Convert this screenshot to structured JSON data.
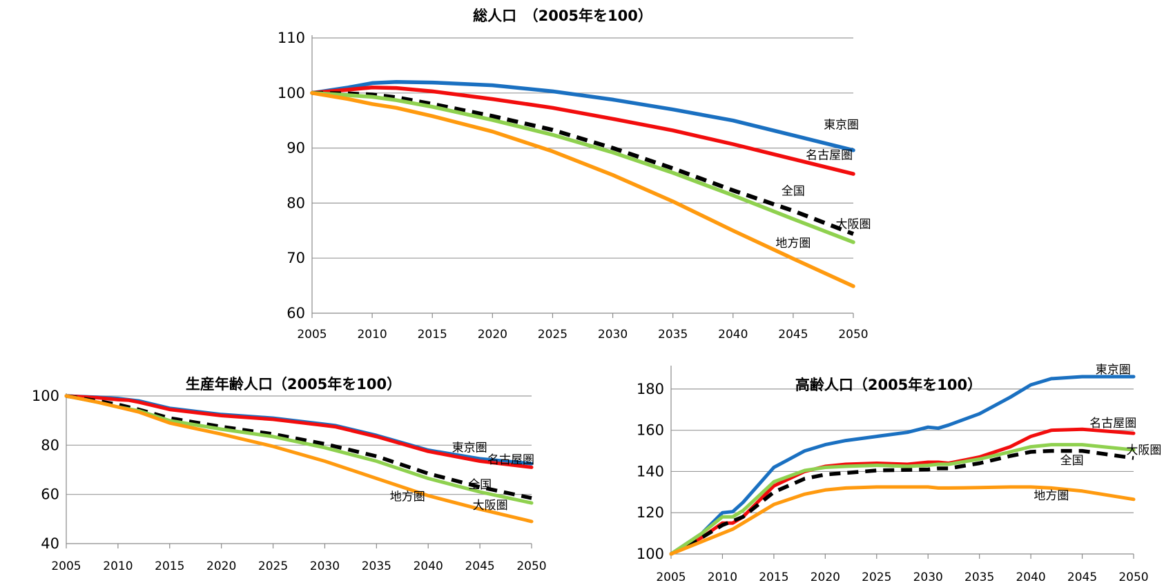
{
  "colors": {
    "東京圏": "#1a70c1",
    "名古屋圏": "#f20d0d",
    "全国": "#000000",
    "大阪圏": "#8fd14f",
    "地方圏": "#ff9a0f"
  },
  "chart_data": [
    {
      "type": "line",
      "title": "総人口　（2005年を100）",
      "xlabel": "",
      "ylabel": "",
      "x_ticks": [
        "2005",
        "2010",
        "2015",
        "2020",
        "2025",
        "2030",
        "2035",
        "2040",
        "2045",
        "2050"
      ],
      "xlim": [
        2005,
        2050
      ],
      "ylim": [
        60,
        110
      ],
      "y_ticks": [
        60,
        70,
        80,
        90,
        100,
        110
      ],
      "grid": true,
      "series": [
        {
          "name": "東京圏",
          "dashed": false,
          "x": [
            2005,
            2008,
            2010,
            2012,
            2015,
            2020,
            2025,
            2030,
            2035,
            2040,
            2045,
            2050
          ],
          "values": [
            100,
            101.0,
            101.8,
            102.0,
            101.9,
            101.4,
            100.3,
            98.8,
            97.0,
            95.0,
            92.3,
            89.6
          ]
        },
        {
          "name": "名古屋圏",
          "dashed": false,
          "x": [
            2005,
            2008,
            2010,
            2012,
            2015,
            2020,
            2025,
            2030,
            2035,
            2040,
            2045,
            2050
          ],
          "values": [
            100,
            100.6,
            101.0,
            100.9,
            100.3,
            98.9,
            97.3,
            95.3,
            93.2,
            90.7,
            88.0,
            85.3
          ]
        },
        {
          "name": "全国",
          "dashed": true,
          "x": [
            2005,
            2008,
            2010,
            2012,
            2015,
            2020,
            2025,
            2030,
            2035,
            2040,
            2045,
            2050
          ],
          "values": [
            100,
            99.9,
            99.7,
            99.2,
            98.0,
            95.8,
            93.3,
            90.0,
            86.3,
            82.3,
            78.6,
            74.4
          ]
        },
        {
          "name": "大阪圏",
          "dashed": false,
          "x": [
            2005,
            2008,
            2010,
            2012,
            2015,
            2020,
            2025,
            2030,
            2035,
            2040,
            2045,
            2050
          ],
          "values": [
            100,
            99.6,
            99.3,
            98.7,
            97.5,
            95.1,
            92.4,
            89.2,
            85.5,
            81.4,
            77.1,
            72.9
          ]
        },
        {
          "name": "地方圏",
          "dashed": false,
          "x": [
            2005,
            2008,
            2010,
            2012,
            2015,
            2020,
            2025,
            2030,
            2035,
            2040,
            2045,
            2050
          ],
          "values": [
            100,
            98.9,
            98.0,
            97.3,
            95.8,
            93.0,
            89.4,
            85.1,
            80.3,
            75.0,
            69.9,
            64.9
          ]
        }
      ],
      "labels": [
        {
          "text": "東京圏",
          "x": 2049,
          "y": 93.5
        },
        {
          "text": "名古屋圏",
          "x": 2048,
          "y": 88.0
        },
        {
          "text": "全国",
          "x": 2045,
          "y": 81.5
        },
        {
          "text": "大阪圏",
          "x": 2050,
          "y": 75.5
        },
        {
          "text": "地方圏",
          "x": 2045,
          "y": 72.0
        }
      ]
    },
    {
      "type": "line",
      "title": "生産年齢人口（2005年を100）",
      "xlabel": "",
      "ylabel": "",
      "x_ticks": [
        "2005",
        "2010",
        "2015",
        "2020",
        "2025",
        "2030",
        "2035",
        "2040",
        "2045",
        "2050"
      ],
      "xlim": [
        2005,
        2050
      ],
      "ylim": [
        40,
        100
      ],
      "y_ticks": [
        40,
        60,
        80,
        100
      ],
      "grid": true,
      "series": [
        {
          "name": "東京圏",
          "dashed": false,
          "x": [
            2005,
            2008,
            2010,
            2011,
            2012,
            2015,
            2020,
            2025,
            2030,
            2031,
            2035,
            2040,
            2045,
            2050
          ],
          "values": [
            100,
            99.5,
            99.0,
            98.5,
            98.0,
            95.0,
            92.5,
            91.0,
            88.5,
            88.0,
            84.0,
            78.0,
            74.5,
            72.5
          ]
        },
        {
          "name": "名古屋圏",
          "dashed": false,
          "x": [
            2005,
            2008,
            2010,
            2011,
            2012,
            2015,
            2020,
            2025,
            2030,
            2031,
            2035,
            2040,
            2045,
            2050
          ],
          "values": [
            100,
            99.3,
            98.5,
            98.3,
            97.5,
            94.5,
            92.0,
            90.5,
            88.0,
            87.5,
            83.5,
            77.5,
            73.5,
            71.0
          ]
        },
        {
          "name": "全国",
          "dashed": true,
          "x": [
            2005,
            2008,
            2010,
            2012,
            2015,
            2020,
            2025,
            2030,
            2035,
            2040,
            2045,
            2050
          ],
          "values": [
            100,
            98.0,
            96.5,
            94.5,
            91.0,
            87.5,
            84.5,
            80.5,
            75.5,
            68.5,
            63.0,
            58.5
          ]
        },
        {
          "name": "大阪圏",
          "dashed": false,
          "x": [
            2005,
            2008,
            2010,
            2012,
            2015,
            2020,
            2025,
            2030,
            2035,
            2040,
            2045,
            2050
          ],
          "values": [
            100,
            97.5,
            95.5,
            94.0,
            90.0,
            86.5,
            83.5,
            79.0,
            73.5,
            66.5,
            61.0,
            56.5
          ]
        },
        {
          "name": "地方圏",
          "dashed": false,
          "x": [
            2005,
            2008,
            2010,
            2012,
            2015,
            2020,
            2025,
            2030,
            2035,
            2040,
            2045,
            2050
          ],
          "values": [
            100,
            97.5,
            95.5,
            93.5,
            89.0,
            84.5,
            79.5,
            73.5,
            66.5,
            59.5,
            54.0,
            49.0
          ]
        }
      ],
      "labels": [
        {
          "text": "東京圏",
          "x": 2044,
          "y": 77.5
        },
        {
          "text": "名古屋圏",
          "x": 2048,
          "y": 72.5
        },
        {
          "text": "全国",
          "x": 2045,
          "y": 62.5
        },
        {
          "text": "地方圏",
          "x": 2038,
          "y": 57.5
        },
        {
          "text": "大阪圏",
          "x": 2046,
          "y": 54.0
        }
      ]
    },
    {
      "type": "line",
      "title": "高齢人口（2005年を100）",
      "xlabel": "",
      "ylabel": "",
      "x_ticks": [
        "2005",
        "2010",
        "2015",
        "2020",
        "2025",
        "2030",
        "2035",
        "2040",
        "2045",
        "2050"
      ],
      "xlim": [
        2005,
        2050
      ],
      "ylim": [
        100,
        190
      ],
      "y_ticks": [
        100,
        120,
        140,
        160,
        180
      ],
      "grid": true,
      "series": [
        {
          "name": "東京圏",
          "dashed": false,
          "x": [
            2005,
            2008,
            2010,
            2011,
            2012,
            2015,
            2018,
            2020,
            2022,
            2025,
            2028,
            2030,
            2031,
            2032,
            2035,
            2038,
            2040,
            2042,
            2045,
            2050
          ],
          "values": [
            100,
            110,
            120,
            120.5,
            125,
            142,
            150,
            153,
            155,
            157,
            159,
            161.5,
            161,
            162.5,
            168,
            176,
            182,
            185,
            186,
            186
          ]
        },
        {
          "name": "名古屋圏",
          "dashed": false,
          "x": [
            2005,
            2008,
            2010,
            2011,
            2012,
            2015,
            2018,
            2020,
            2022,
            2025,
            2028,
            2030,
            2031,
            2032,
            2035,
            2038,
            2040,
            2042,
            2045,
            2050
          ],
          "values": [
            100,
            108,
            115,
            115,
            118,
            133,
            140,
            142.5,
            143.5,
            144,
            143.5,
            144.5,
            144.5,
            144,
            147,
            152,
            157,
            160,
            160.5,
            158.5
          ]
        },
        {
          "name": "全国",
          "dashed": true,
          "x": [
            2005,
            2008,
            2010,
            2012,
            2015,
            2018,
            2020,
            2025,
            2030,
            2031,
            2032,
            2035,
            2038,
            2040,
            2042,
            2045,
            2050
          ],
          "values": [
            100,
            108,
            114,
            118,
            130,
            136.5,
            138.5,
            140.5,
            141,
            141.5,
            141.5,
            144,
            147.5,
            149.5,
            150,
            150,
            146.5
          ]
        },
        {
          "name": "大阪圏",
          "dashed": false,
          "x": [
            2005,
            2008,
            2010,
            2011,
            2012,
            2015,
            2018,
            2020,
            2022,
            2025,
            2028,
            2030,
            2031,
            2032,
            2035,
            2038,
            2040,
            2042,
            2045,
            2050
          ],
          "values": [
            100,
            110,
            118,
            118,
            121,
            135,
            140.5,
            142,
            142.5,
            143,
            142.5,
            143,
            143.5,
            143.5,
            146,
            149.5,
            152,
            153,
            153,
            150.5
          ]
        },
        {
          "name": "地方圏",
          "dashed": false,
          "x": [
            2005,
            2008,
            2010,
            2011,
            2012,
            2015,
            2018,
            2020,
            2022,
            2025,
            2028,
            2030,
            2031,
            2032,
            2035,
            2038,
            2040,
            2042,
            2045,
            2050
          ],
          "values": [
            100,
            106,
            110,
            112,
            115,
            124,
            129,
            131,
            132,
            132.5,
            132.5,
            132.5,
            132,
            132,
            132.2,
            132.5,
            132.5,
            132,
            130.5,
            126.5
          ]
        }
      ],
      "labels": [
        {
          "text": "東京圏",
          "x": 2048,
          "y": 187.5
        },
        {
          "text": "名古屋圏",
          "x": 2048,
          "y": 161.5
        },
        {
          "text": "大阪圏",
          "x": 2051,
          "y": 148.5
        },
        {
          "text": "全国",
          "x": 2044,
          "y": 143.5
        },
        {
          "text": "地方圏",
          "x": 2042,
          "y": 126.5
        }
      ]
    }
  ]
}
